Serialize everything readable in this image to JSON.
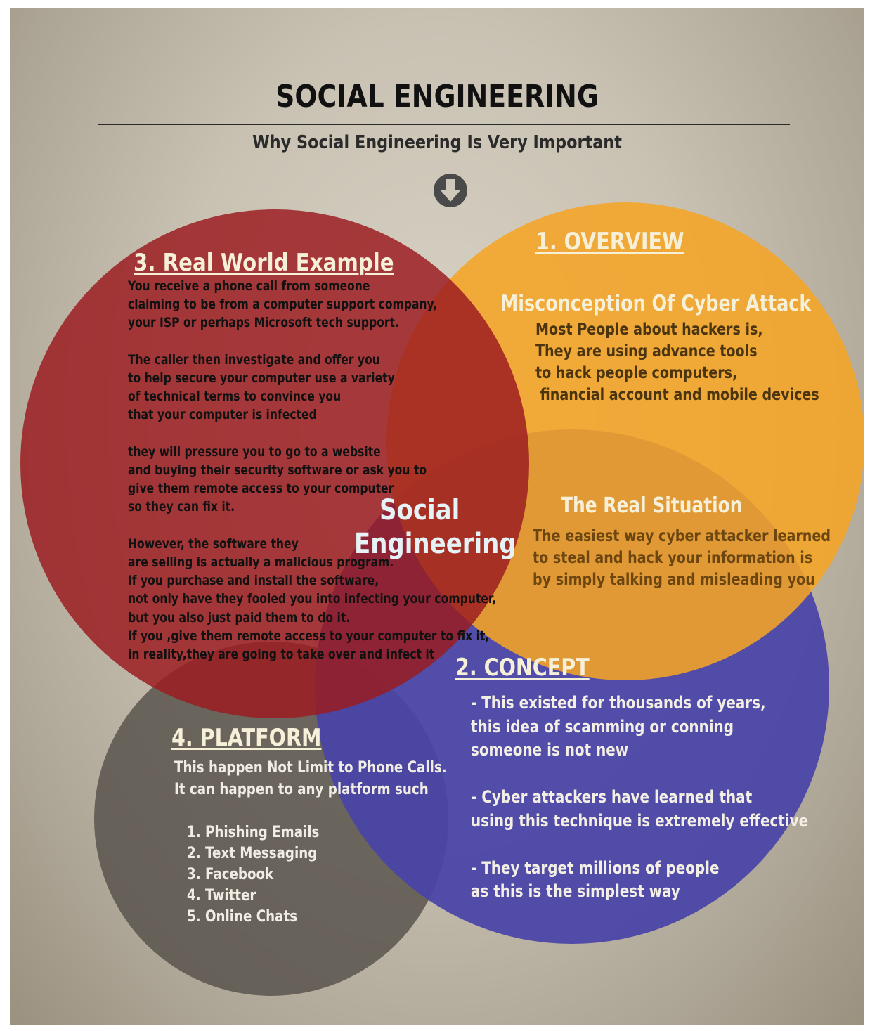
{
  "title": "SOCIAL ENGINEERING",
  "subtitle": "Why Social Engineering Is Very Important",
  "center_label": [
    "Social",
    "Engineering"
  ],
  "colors": {
    "red": "#9b1c20",
    "orange": "#f5a426",
    "blue": "#4844a8",
    "gray": "#55514a",
    "heading_text": "#f6f0d8",
    "center_text": "#e6f3f6"
  },
  "icons": {
    "arrow": "down-arrow-circle-icon"
  },
  "sections": {
    "real_world_example": {
      "heading": "3. Real World Example",
      "lines": [
        "You receive a phone call from someone",
        "claiming to be from a computer support company,",
        "your ISP or perhaps Microsoft tech support.",
        "",
        "The caller then investigate and offer you",
        "to help secure your computer use a variety",
        "of technical terms to convince you",
        "that your computer is infected",
        "",
        "they will pressure you to go to a website",
        "and buying their security software or ask you to",
        "give them remote access to your computer",
        "so they can fix it.",
        "",
        "However, the software they",
        "are selling is actually a malicious program.",
        "If you purchase and install the software,",
        "not only have they fooled you into infecting your computer,",
        "but you also just paid them to do it.",
        "If you ,give them remote access to your computer to fix it,",
        "in reality,they are going to take over and infect it"
      ]
    },
    "overview": {
      "heading": "1. OVERVIEW",
      "subheading": "Misconception Of Cyber Attack",
      "lines": [
        "Most People about hackers is,",
        "They are using advance tools",
        "to hack people computers,",
        " financial account and mobile devices"
      ],
      "subheading2": "The Real Situation",
      "lines2": [
        "The easiest way cyber attacker learned",
        "to steal and hack your information is",
        "by simply talking and misleading you"
      ]
    },
    "concept": {
      "heading": "2. CONCEPT",
      "lines": [
        "- This existed for thousands of years,",
        "this idea of scamming or conning",
        "someone is not new",
        "",
        "- Cyber attackers have learned that",
        "using this technique is extremely effective",
        "",
        "- They target millions of people",
        "as this is the simplest way"
      ]
    },
    "platform": {
      "heading": "4. PLATFORM",
      "intro": [
        "This happen Not Limit to Phone Calls.",
        "It can happen to any platform such"
      ],
      "items": [
        "1. Phishing Emails",
        "2. Text Messaging",
        "3. Facebook",
        "4. Twitter",
        "5. Online Chats"
      ]
    }
  }
}
